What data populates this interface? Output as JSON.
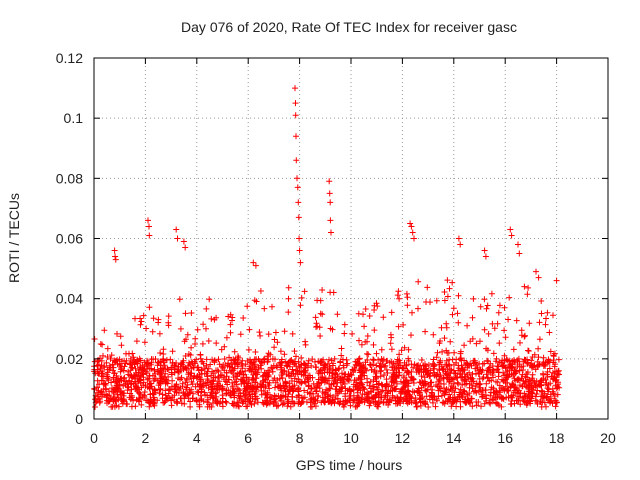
{
  "chart_data": {
    "type": "scatter",
    "title": "Day 076 of 2020, Rate Of TEC Index for receiver gasc",
    "xlabel": "GPS time / hours",
    "ylabel": "ROTI / TECUs",
    "xlim": [
      0,
      20
    ],
    "ylim": [
      0,
      0.12
    ],
    "x_ticks": [
      0,
      2,
      4,
      6,
      8,
      10,
      12,
      14,
      16,
      18,
      20
    ],
    "x_tick_labels": [
      "0",
      "2",
      "4",
      "6",
      "8",
      "10",
      "12",
      "14",
      "16",
      "18",
      "20"
    ],
    "y_ticks": [
      0,
      0.02,
      0.04,
      0.06,
      0.08,
      0.1,
      0.12
    ],
    "y_tick_labels": [
      "0",
      "0.02",
      "0.04",
      "0.06",
      "0.08",
      "0.1",
      "0.12"
    ],
    "grid": true,
    "marker": "+",
    "color": "#ff0000",
    "data_range": {
      "x": [
        0,
        18.1
      ]
    },
    "series": [
      {
        "name": "ROTI",
        "notable_points": [
          {
            "x": 7.82,
            "y": 0.11
          },
          {
            "x": 7.84,
            "y": 0.105
          },
          {
            "x": 7.85,
            "y": 0.101
          },
          {
            "x": 7.86,
            "y": 0.094
          },
          {
            "x": 7.87,
            "y": 0.086
          },
          {
            "x": 7.9,
            "y": 0.08
          },
          {
            "x": 7.93,
            "y": 0.077
          },
          {
            "x": 7.95,
            "y": 0.072
          },
          {
            "x": 7.97,
            "y": 0.067
          },
          {
            "x": 7.98,
            "y": 0.06
          },
          {
            "x": 8.0,
            "y": 0.056
          },
          {
            "x": 8.03,
            "y": 0.052
          },
          {
            "x": 9.15,
            "y": 0.079
          },
          {
            "x": 9.17,
            "y": 0.075
          },
          {
            "x": 9.19,
            "y": 0.072
          },
          {
            "x": 9.2,
            "y": 0.066
          },
          {
            "x": 9.22,
            "y": 0.062
          },
          {
            "x": 2.1,
            "y": 0.066
          },
          {
            "x": 2.14,
            "y": 0.064
          },
          {
            "x": 2.15,
            "y": 0.061
          },
          {
            "x": 3.2,
            "y": 0.063
          },
          {
            "x": 3.25,
            "y": 0.06
          },
          {
            "x": 3.5,
            "y": 0.059
          },
          {
            "x": 3.55,
            "y": 0.057
          },
          {
            "x": 0.8,
            "y": 0.056
          },
          {
            "x": 0.82,
            "y": 0.054
          },
          {
            "x": 0.85,
            "y": 0.053
          },
          {
            "x": 6.2,
            "y": 0.052
          },
          {
            "x": 6.3,
            "y": 0.051
          },
          {
            "x": 12.3,
            "y": 0.065
          },
          {
            "x": 12.35,
            "y": 0.064
          },
          {
            "x": 12.4,
            "y": 0.062
          },
          {
            "x": 12.45,
            "y": 0.06
          },
          {
            "x": 14.2,
            "y": 0.06
          },
          {
            "x": 14.25,
            "y": 0.058
          },
          {
            "x": 15.2,
            "y": 0.056
          },
          {
            "x": 15.25,
            "y": 0.054
          },
          {
            "x": 16.2,
            "y": 0.063
          },
          {
            "x": 16.25,
            "y": 0.061
          },
          {
            "x": 16.5,
            "y": 0.058
          },
          {
            "x": 16.55,
            "y": 0.055
          },
          {
            "x": 17.2,
            "y": 0.049
          },
          {
            "x": 17.3,
            "y": 0.047
          },
          {
            "x": 18.0,
            "y": 0.046
          }
        ],
        "envelope": {
          "hours": [
            0,
            0.5,
            1,
            1.5,
            2,
            2.5,
            3,
            3.5,
            4,
            4.5,
            5,
            5.5,
            6,
            6.5,
            7,
            7.5,
            8,
            8.5,
            9,
            9.5,
            10,
            10.5,
            11,
            11.5,
            12,
            12.5,
            13,
            13.5,
            14,
            14.5,
            15,
            15.5,
            16,
            16.5,
            17,
            17.5,
            18
          ],
          "typical_max": [
            0.03,
            0.033,
            0.028,
            0.036,
            0.04,
            0.035,
            0.044,
            0.043,
            0.04,
            0.04,
            0.037,
            0.035,
            0.04,
            0.044,
            0.04,
            0.046,
            0.048,
            0.044,
            0.046,
            0.04,
            0.038,
            0.036,
            0.042,
            0.04,
            0.044,
            0.048,
            0.046,
            0.05,
            0.045,
            0.044,
            0.04,
            0.042,
            0.043,
            0.046,
            0.044,
            0.04,
            0.036
          ],
          "dense_band": [
            0.005,
            0.02
          ]
        }
      }
    ]
  }
}
